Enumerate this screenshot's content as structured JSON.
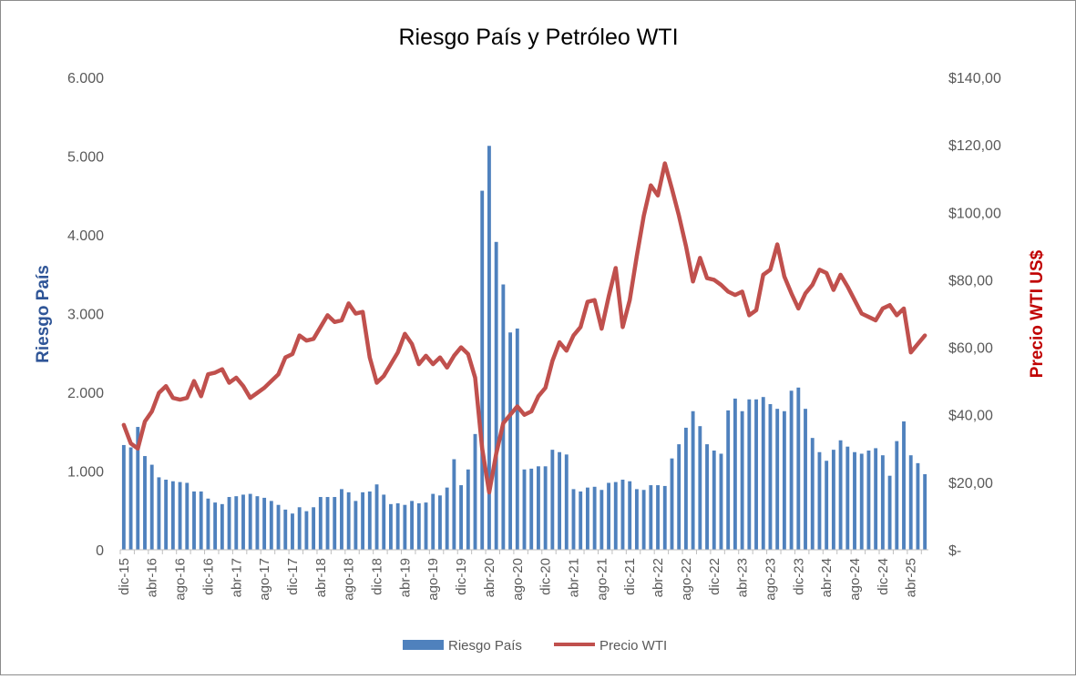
{
  "chart_data": {
    "type": "bar+line",
    "title": "Riesgo País y Petróleo WTI",
    "y_left_label": "Riesgo País",
    "y_right_label": "Precio WTI US$",
    "y_left_ticks": [
      "0",
      "1.000",
      "2.000",
      "3.000",
      "4.000",
      "5.000",
      "6.000"
    ],
    "y_right_ticks": [
      "$-",
      "$20,00",
      "$40,00",
      "$60,00",
      "$80,00",
      "$100,00",
      "$120,00",
      "$140,00"
    ],
    "y_left_range": [
      0,
      6000
    ],
    "y_right_range": [
      0,
      140
    ],
    "x_tick_labels": [
      "dic-15",
      "abr-16",
      "ago-16",
      "dic-16",
      "abr-17",
      "ago-17",
      "dic-17",
      "abr-18",
      "ago-18",
      "dic-18",
      "abr-19",
      "ago-19",
      "dic-19",
      "abr-20",
      "ago-20",
      "dic-20",
      "abr-21",
      "ago-21",
      "dic-21",
      "abr-22",
      "ago-22",
      "dic-22",
      "abr-23",
      "ago-23",
      "dic-23",
      "abr-24",
      "ago-24",
      "dic-24",
      "abr-25"
    ],
    "legend": {
      "placement": "bottom",
      "entries": [
        "Riesgo País",
        "Precio WTI"
      ]
    },
    "series": [
      {
        "name": "Riesgo País",
        "kind": "bar",
        "color": "#4f81bd",
        "values": [
          1330,
          1300,
          1560,
          1190,
          1080,
          920,
          890,
          870,
          860,
          850,
          740,
          740,
          650,
          600,
          580,
          670,
          680,
          700,
          710,
          680,
          660,
          620,
          570,
          510,
          460,
          540,
          490,
          540,
          670,
          670,
          670,
          770,
          730,
          620,
          730,
          740,
          830,
          700,
          580,
          590,
          570,
          620,
          590,
          600,
          710,
          690,
          790,
          1150,
          820,
          1020,
          1470,
          4560,
          5130,
          3910,
          3370,
          2760,
          2810,
          1020,
          1030,
          1060,
          1060,
          1270,
          1240,
          1210,
          770,
          740,
          790,
          800,
          760,
          850,
          860,
          890,
          870,
          770,
          760,
          820,
          820,
          810,
          1160,
          1340,
          1550,
          1760,
          1570,
          1340,
          1260,
          1220,
          1770,
          1920,
          1760,
          1910,
          1910,
          1940,
          1850,
          1790,
          1760,
          2020,
          2060,
          1790,
          1420,
          1240,
          1130,
          1270,
          1390,
          1310,
          1240,
          1220,
          1260,
          1290,
          1200,
          940,
          1380,
          1630,
          1200,
          1100,
          960
        ]
      },
      {
        "name": "Precio WTI",
        "kind": "line",
        "color": "#c0504d",
        "values": [
          37.0,
          31.5,
          30.0,
          38.0,
          41.0,
          46.5,
          48.5,
          45.0,
          44.5,
          45.0,
          50.0,
          45.5,
          52.0,
          52.5,
          53.5,
          49.5,
          51.0,
          48.5,
          45.0,
          46.5,
          48.0,
          50.0,
          52.0,
          57.0,
          58.0,
          63.5,
          62.0,
          62.5,
          66.0,
          69.5,
          67.5,
          68.0,
          73.0,
          70.0,
          70.5,
          57.0,
          49.5,
          51.5,
          55.0,
          58.5,
          64.0,
          61.0,
          55.0,
          57.5,
          55.0,
          57.0,
          54.0,
          57.5,
          60.0,
          58.0,
          51.0,
          30.0,
          17.0,
          28.5,
          37.5,
          40.0,
          42.5,
          40.0,
          41.0,
          45.5,
          48.0,
          56.0,
          61.5,
          59.0,
          63.5,
          66.0,
          73.5,
          74.0,
          65.5,
          75.0,
          83.5,
          66.0,
          74.0,
          87.0,
          99.0,
          108.0,
          105.0,
          114.5,
          107.0,
          99.0,
          90.0,
          79.5,
          86.5,
          80.5,
          80.0,
          78.5,
          76.5,
          75.5,
          76.5,
          69.5,
          71.0,
          81.5,
          83.0,
          90.5,
          81.0,
          76.0,
          71.5,
          76.0,
          78.5,
          83.0,
          82.0,
          77.0,
          81.5,
          78.0,
          74.0,
          70.0,
          69.0,
          68.0,
          71.5,
          72.5,
          69.5,
          71.5,
          58.5,
          61.0,
          63.5
        ]
      }
    ]
  }
}
